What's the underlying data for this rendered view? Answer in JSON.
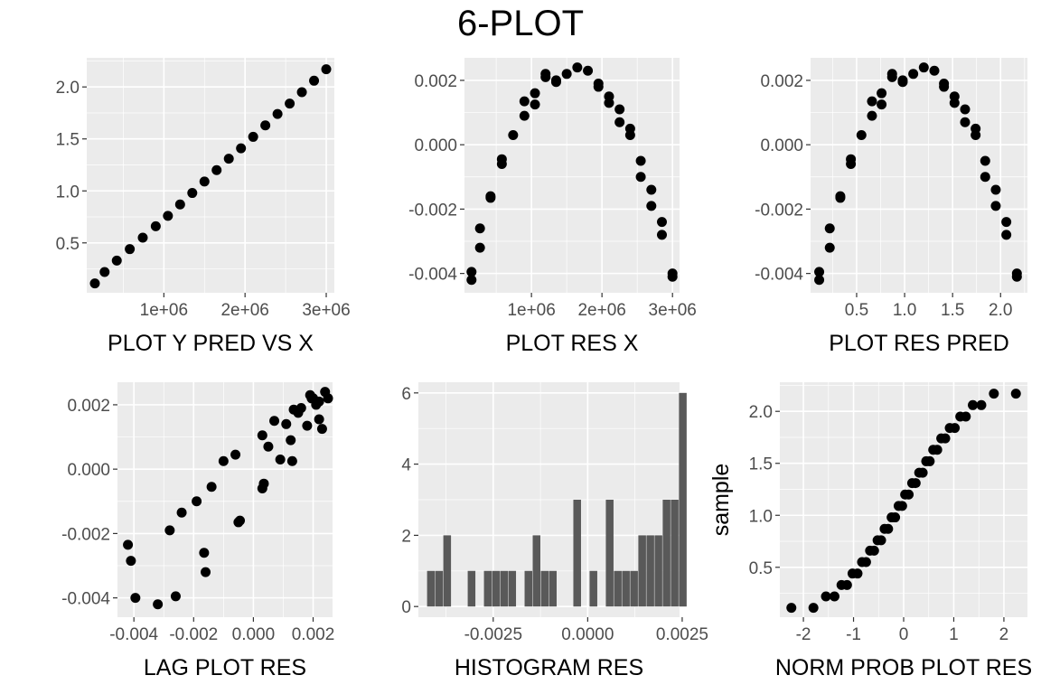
{
  "title": "6-PLOT",
  "chart_data": [
    {
      "id": "p1",
      "type": "scatter",
      "xlabel": "PLOT Y PRED VS X",
      "ylabel": "",
      "xlim": [
        50000,
        3100000
      ],
      "ylim": [
        0.02,
        2.28
      ],
      "xticks": [
        1000000,
        2000000,
        3000000
      ],
      "xtick_labels": [
        "1e+06",
        "2e+06",
        "3e+06"
      ],
      "yticks": [
        0.5,
        1.0,
        1.5,
        2.0
      ],
      "ytick_labels": [
        "0.5",
        "1.0",
        "1.5",
        "2.0"
      ],
      "points": [
        [
          150000,
          0.11
        ],
        [
          270000,
          0.22
        ],
        [
          420000,
          0.33
        ],
        [
          580000,
          0.44
        ],
        [
          740000,
          0.55
        ],
        [
          900000,
          0.66
        ],
        [
          1050000,
          0.76
        ],
        [
          1200000,
          0.87
        ],
        [
          1350000,
          0.98
        ],
        [
          1500000,
          1.09
        ],
        [
          1650000,
          1.2
        ],
        [
          1800000,
          1.31
        ],
        [
          1950000,
          1.41
        ],
        [
          2100000,
          1.52
        ],
        [
          2250000,
          1.63
        ],
        [
          2400000,
          1.74
        ],
        [
          2550000,
          1.84
        ],
        [
          2700000,
          1.95
        ],
        [
          2850000,
          2.06
        ],
        [
          3000000,
          2.17
        ]
      ]
    },
    {
      "id": "p2",
      "type": "scatter",
      "xlabel": "PLOT RES X",
      "ylabel": "",
      "xlim": [
        50000,
        3100000
      ],
      "ylim": [
        -0.0046,
        0.0027
      ],
      "xticks": [
        1000000,
        2000000,
        3000000
      ],
      "xtick_labels": [
        "1e+06",
        "2e+06",
        "3e+06"
      ],
      "yticks": [
        -0.004,
        -0.002,
        0.0,
        0.002
      ],
      "ytick_labels": [
        "-0.004",
        "-0.002",
        "0.000",
        "0.002"
      ],
      "points": [
        [
          150000,
          -0.00395
        ],
        [
          150000,
          -0.0042
        ],
        [
          270000,
          -0.0026
        ],
        [
          270000,
          -0.0032
        ],
        [
          420000,
          -0.00165
        ],
        [
          420000,
          -0.0016
        ],
        [
          580000,
          -0.00045
        ],
        [
          580000,
          -0.0006
        ],
        [
          740000,
          0.0003
        ],
        [
          900000,
          0.0009
        ],
        [
          900000,
          0.00135
        ],
        [
          1050000,
          0.00125
        ],
        [
          1050000,
          0.0016
        ],
        [
          1200000,
          0.0022
        ],
        [
          1200000,
          0.0021
        ],
        [
          1350000,
          0.00195
        ],
        [
          1350000,
          0.002
        ],
        [
          1500000,
          0.0022
        ],
        [
          1650000,
          0.0024
        ],
        [
          1800000,
          0.0023
        ],
        [
          1950000,
          0.0019
        ],
        [
          1950000,
          0.0018
        ],
        [
          2100000,
          0.0015
        ],
        [
          2100000,
          0.0013
        ],
        [
          2250000,
          0.0011
        ],
        [
          2250000,
          0.0007
        ],
        [
          2400000,
          0.0005
        ],
        [
          2400000,
          0.0003
        ],
        [
          2550000,
          -0.0005
        ],
        [
          2550000,
          -0.001
        ],
        [
          2700000,
          -0.0014
        ],
        [
          2700000,
          -0.0019
        ],
        [
          2850000,
          -0.0024
        ],
        [
          2850000,
          -0.0028
        ],
        [
          3000000,
          -0.004
        ],
        [
          3000000,
          -0.0041
        ]
      ]
    },
    {
      "id": "p3",
      "type": "scatter",
      "xlabel": "PLOT RES PRED",
      "ylabel": "",
      "xlim": [
        0.02,
        2.28
      ],
      "ylim": [
        -0.0046,
        0.0027
      ],
      "xticks": [
        0.5,
        1.0,
        1.5,
        2.0
      ],
      "xtick_labels": [
        "0.5",
        "1.0",
        "1.5",
        "2.0"
      ],
      "yticks": [
        -0.004,
        -0.002,
        0.0,
        0.002
      ],
      "ytick_labels": [
        "-0.004",
        "-0.002",
        "0.000",
        "0.002"
      ],
      "points": [
        [
          0.11,
          -0.00395
        ],
        [
          0.11,
          -0.0042
        ],
        [
          0.22,
          -0.0026
        ],
        [
          0.22,
          -0.0032
        ],
        [
          0.33,
          -0.00165
        ],
        [
          0.33,
          -0.0016
        ],
        [
          0.44,
          -0.00045
        ],
        [
          0.44,
          -0.0006
        ],
        [
          0.55,
          0.0003
        ],
        [
          0.66,
          0.0009
        ],
        [
          0.66,
          0.00135
        ],
        [
          0.76,
          0.00125
        ],
        [
          0.76,
          0.0016
        ],
        [
          0.87,
          0.0022
        ],
        [
          0.87,
          0.0021
        ],
        [
          0.98,
          0.00195
        ],
        [
          0.98,
          0.002
        ],
        [
          1.09,
          0.0022
        ],
        [
          1.2,
          0.0024
        ],
        [
          1.31,
          0.0023
        ],
        [
          1.41,
          0.0019
        ],
        [
          1.41,
          0.0018
        ],
        [
          1.52,
          0.0015
        ],
        [
          1.52,
          0.0013
        ],
        [
          1.63,
          0.0011
        ],
        [
          1.63,
          0.0007
        ],
        [
          1.74,
          0.0005
        ],
        [
          1.74,
          0.0003
        ],
        [
          1.84,
          -0.0005
        ],
        [
          1.84,
          -0.001
        ],
        [
          1.95,
          -0.0014
        ],
        [
          1.95,
          -0.0019
        ],
        [
          2.06,
          -0.0024
        ],
        [
          2.06,
          -0.0028
        ],
        [
          2.17,
          -0.004
        ],
        [
          2.17,
          -0.0041
        ]
      ]
    },
    {
      "id": "p4",
      "type": "scatter",
      "xlabel": "LAG PLOT RES",
      "ylabel": "",
      "xlim": [
        -0.00455,
        0.00265
      ],
      "ylim": [
        -0.0046,
        0.0027
      ],
      "xticks": [
        -0.004,
        -0.002,
        0.0,
        0.002
      ],
      "xtick_labels": [
        "-0.004",
        "-0.002",
        "0.000",
        "0.002"
      ],
      "yticks": [
        -0.004,
        -0.002,
        0.0,
        0.002
      ],
      "ytick_labels": [
        "-0.004",
        "-0.002",
        "0.000",
        "0.002"
      ],
      "points": [
        [
          -0.0042,
          -0.00235
        ],
        [
          -0.0041,
          -0.00285
        ],
        [
          -0.00395,
          -0.004
        ],
        [
          -0.0032,
          -0.0042
        ],
        [
          -0.0028,
          -0.0019
        ],
        [
          -0.0026,
          -0.00395
        ],
        [
          -0.0024,
          -0.00135
        ],
        [
          -0.0019,
          -0.001
        ],
        [
          -0.00165,
          -0.0026
        ],
        [
          -0.0016,
          -0.0032
        ],
        [
          -0.0014,
          -0.00055
        ],
        [
          -0.001,
          0.00025
        ],
        [
          -0.0006,
          0.00045
        ],
        [
          -0.0005,
          -0.00165
        ],
        [
          -0.00045,
          -0.0016
        ],
        [
          0.0003,
          0.00105
        ],
        [
          0.0003,
          -0.0006
        ],
        [
          0.00035,
          -0.00045
        ],
        [
          0.0005,
          0.0007
        ],
        [
          0.0007,
          0.0015
        ],
        [
          0.0009,
          0.0003
        ],
        [
          0.0011,
          0.0014
        ],
        [
          0.00125,
          0.0009
        ],
        [
          0.0013,
          0.00025
        ],
        [
          0.00135,
          0.00185
        ],
        [
          0.0015,
          0.00175
        ],
        [
          0.0016,
          0.0019
        ],
        [
          0.0018,
          0.00135
        ],
        [
          0.0019,
          0.0023
        ],
        [
          0.00195,
          0.0022
        ],
        [
          0.002,
          0.0022
        ],
        [
          0.0021,
          0.002
        ],
        [
          0.0022,
          0.00155
        ],
        [
          0.0022,
          0.0021
        ],
        [
          0.0023,
          0.00125
        ],
        [
          0.0024,
          0.0024
        ],
        [
          0.0025,
          0.0022
        ]
      ]
    },
    {
      "id": "p5",
      "type": "bar",
      "xlabel": "HISTOGRAM RES",
      "ylabel": "",
      "xlim": [
        -0.00448,
        0.00243
      ],
      "ylim": [
        -0.3,
        6.3
      ],
      "xticks": [
        -0.0025,
        0.0,
        0.0025
      ],
      "xtick_labels": [
        "-0.0025",
        "0.0000",
        "0.0025"
      ],
      "yticks": [
        0,
        2,
        4,
        6
      ],
      "ytick_labels": [
        "0",
        "2",
        "4",
        "6"
      ],
      "bin_start": -0.00425,
      "bin_width": 0.000215,
      "values": [
        1,
        1,
        2,
        0,
        0,
        1,
        0,
        1,
        1,
        1,
        1,
        0,
        1,
        2,
        1,
        1,
        0,
        0,
        3,
        0,
        1,
        0,
        3,
        1,
        1,
        1,
        2,
        2,
        2,
        3,
        3,
        6
      ]
    },
    {
      "id": "p6",
      "type": "scatter",
      "xlabel": "NORM PROB PLOT RES",
      "ylabel": "sample",
      "xlim": [
        -2.47,
        2.47
      ],
      "ylim": [
        0.02,
        2.28
      ],
      "xticks": [
        -2,
        -1,
        0,
        1,
        2
      ],
      "xtick_labels": [
        "-2",
        "-1",
        "0",
        "1",
        "2"
      ],
      "yticks": [
        0.5,
        1.0,
        1.5,
        2.0
      ],
      "ytick_labels": [
        "0.5",
        "1.0",
        "1.5",
        "2.0"
      ],
      "points": [
        [
          -2.24,
          0.11
        ],
        [
          -1.8,
          0.11
        ],
        [
          -1.55,
          0.22
        ],
        [
          -1.38,
          0.22
        ],
        [
          -1.24,
          0.33
        ],
        [
          -1.13,
          0.33
        ],
        [
          -1.02,
          0.44
        ],
        [
          -0.92,
          0.44
        ],
        [
          -0.83,
          0.55
        ],
        [
          -0.75,
          0.55
        ],
        [
          -0.67,
          0.66
        ],
        [
          -0.59,
          0.66
        ],
        [
          -0.52,
          0.76
        ],
        [
          -0.45,
          0.76
        ],
        [
          -0.38,
          0.87
        ],
        [
          -0.31,
          0.87
        ],
        [
          -0.24,
          0.98
        ],
        [
          -0.17,
          0.98
        ],
        [
          -0.1,
          1.09
        ],
        [
          -0.03,
          1.09
        ],
        [
          0.03,
          1.2
        ],
        [
          0.1,
          1.2
        ],
        [
          0.17,
          1.31
        ],
        [
          0.24,
          1.31
        ],
        [
          0.31,
          1.41
        ],
        [
          0.38,
          1.41
        ],
        [
          0.45,
          1.52
        ],
        [
          0.52,
          1.52
        ],
        [
          0.59,
          1.63
        ],
        [
          0.67,
          1.63
        ],
        [
          0.75,
          1.74
        ],
        [
          0.83,
          1.74
        ],
        [
          0.92,
          1.84
        ],
        [
          1.02,
          1.84
        ],
        [
          1.13,
          1.95
        ],
        [
          1.24,
          1.95
        ],
        [
          1.38,
          2.06
        ],
        [
          1.55,
          2.06
        ],
        [
          1.8,
          2.17
        ],
        [
          2.24,
          2.17
        ]
      ]
    }
  ]
}
